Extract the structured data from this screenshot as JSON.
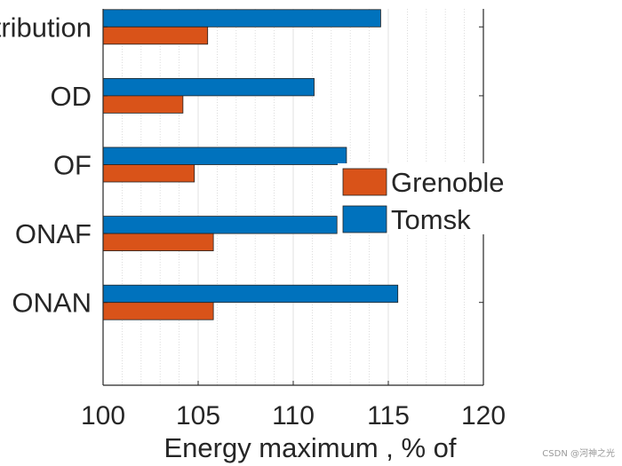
{
  "chart_data": {
    "type": "bar",
    "orientation": "horizontal",
    "categories": [
      "Distribution",
      "OD",
      "OF",
      "ONAF",
      "ONAN"
    ],
    "series": [
      {
        "name": "Tomsk",
        "color": "#0072BD",
        "values": [
          114.6,
          111.1,
          112.8,
          112.3,
          115.5
        ]
      },
      {
        "name": "Grenoble",
        "color": "#D95319",
        "values": [
          105.5,
          104.2,
          104.8,
          105.8,
          105.8
        ]
      }
    ],
    "xlim": [
      100,
      120
    ],
    "xticks": [
      "100",
      "105",
      "110",
      "115",
      "120"
    ],
    "xlabel": "Energy maximum , % of",
    "ylabel": "",
    "title": "",
    "legend": {
      "position": "right",
      "entries": [
        "Grenoble",
        "Tomsk"
      ]
    },
    "grid": "x-minor"
  },
  "watermark": "CSDN @河神之光"
}
